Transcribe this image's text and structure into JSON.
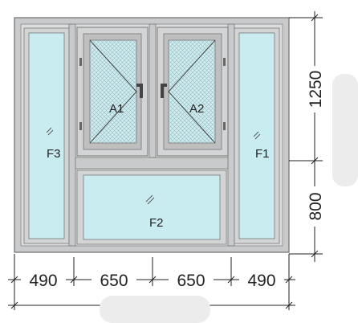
{
  "panels": {
    "left_fixed": "F3",
    "right_fixed": "F1",
    "bottom_fixed": "F2",
    "left_casement": "A1",
    "right_casement": "A2"
  },
  "dimensions": {
    "bottom": [
      "490",
      "650",
      "650",
      "490"
    ],
    "right_upper": "1250",
    "right_lower": "800"
  },
  "colors": {
    "frame": "#c9cacb",
    "frame_edge": "#6e6e6e",
    "glass": "#c8ecf0",
    "dim_line": "#222222"
  }
}
